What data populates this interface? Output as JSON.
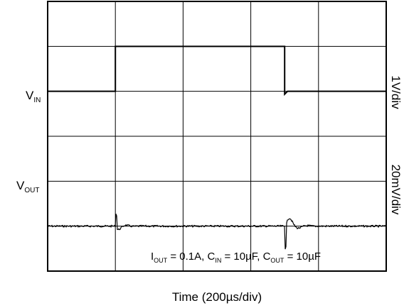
{
  "chart_data": {
    "type": "line",
    "xlabel": "Time (200µs/div)",
    "x_divisions": 5,
    "y_divisions": 6,
    "grid": true,
    "channels": [
      {
        "name_main": "V",
        "name_sub": "IN",
        "scale": "1V/div",
        "trace": {
          "baseline_div": 4,
          "step_div": 1,
          "rise_at_div": 1.0,
          "fall_at_div": 3.5
        }
      },
      {
        "name_main": "V",
        "name_sub": "OUT",
        "scale": "20mV/div",
        "trace": {
          "baseline_div": 1,
          "noise_div": 0.02,
          "rise_transient_div": 0.1,
          "fall_transient_div": 0.45
        }
      }
    ],
    "annotation": [
      {
        "main": "I",
        "sub": "OUT",
        "rest": " = 0.1A, "
      },
      {
        "main": "C",
        "sub": "IN",
        "rest": " = 10µF, "
      },
      {
        "main": "C",
        "sub": "OUT",
        "rest": " = 10µF"
      }
    ]
  }
}
